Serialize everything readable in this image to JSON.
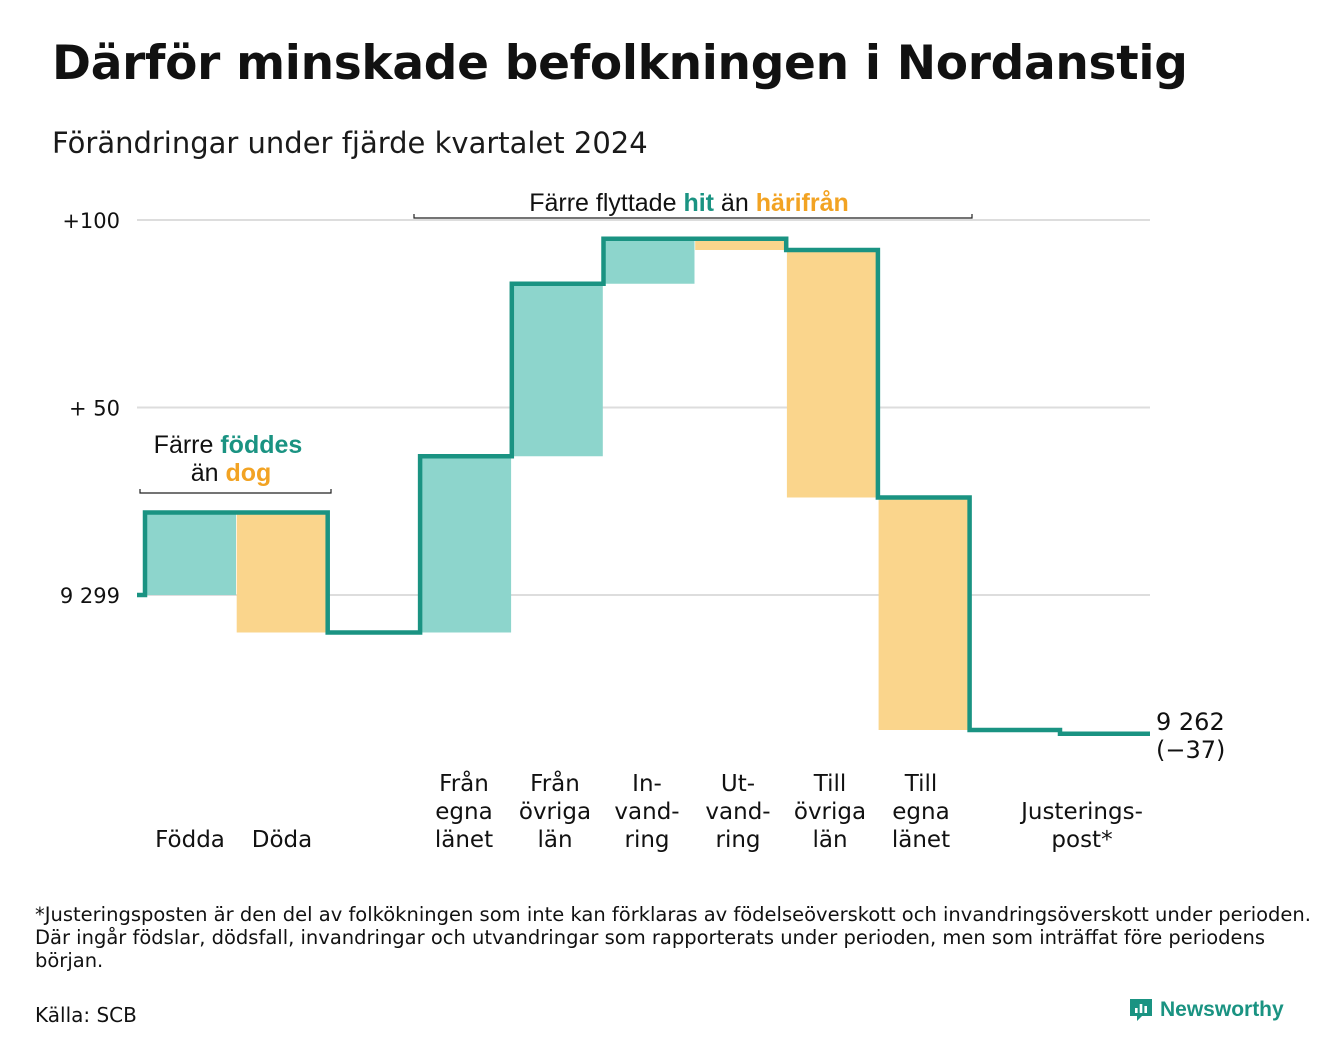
{
  "header": {
    "title": "Därför minskade befolkningen i Nordanstig",
    "subtitle": "Förändringar under fjärde kvartalet 2024"
  },
  "chart_data": {
    "type": "waterfall",
    "start_value": 9299,
    "start_label": "9 299",
    "end_value": 9262,
    "end_label": "9 262",
    "end_change_label": "(−37)",
    "y_axis": {
      "range": [
        -37,
        100
      ],
      "ticks": [
        {
          "value": 100,
          "label": "+100"
        },
        {
          "value": 50,
          "label": "+ 50"
        },
        {
          "value": 0,
          "label": "9 299"
        }
      ],
      "grid": true
    },
    "steps": [
      {
        "key": "fodda",
        "lines": [
          "Födda"
        ],
        "change": 22,
        "kind": "plus"
      },
      {
        "key": "doda",
        "lines": [
          "Döda"
        ],
        "change": -32,
        "kind": "minus"
      },
      {
        "key": "fran-egna-lanet",
        "lines": [
          "Från",
          "egna",
          "länet"
        ],
        "change": 47,
        "kind": "plus"
      },
      {
        "key": "fran-ovriga-lan",
        "lines": [
          "Från",
          "övriga",
          "län"
        ],
        "change": 46,
        "kind": "plus"
      },
      {
        "key": "invandring",
        "lines": [
          "In-",
          "vand-",
          "ring"
        ],
        "change": 12,
        "kind": "plus"
      },
      {
        "key": "utvandring",
        "lines": [
          "Ut-",
          "vand-",
          "ring"
        ],
        "change": -3,
        "kind": "minus"
      },
      {
        "key": "till-ovriga-lan",
        "lines": [
          "Till",
          "övriga",
          "län"
        ],
        "change": -66,
        "kind": "minus"
      },
      {
        "key": "till-egna-lanet",
        "lines": [
          "Till",
          "egna",
          "länet"
        ],
        "change": -62,
        "kind": "minus"
      },
      {
        "key": "justeringspost",
        "lines": [
          "Justerings-",
          "post*"
        ],
        "change": -1,
        "kind": "adjust"
      }
    ],
    "annotations": [
      {
        "key": "births",
        "parts": [
          {
            "text": "Färre ",
            "style": "plain"
          },
          {
            "text": "föddes",
            "style": "plus"
          }
        ],
        "parts2": [
          {
            "text": "än ",
            "style": "plain"
          },
          {
            "text": "dog",
            "style": "minus"
          }
        ],
        "spans_steps": [
          "fodda",
          "doda"
        ]
      },
      {
        "key": "migration",
        "parts": [
          {
            "text": "Färre flyttade ",
            "style": "plain"
          },
          {
            "text": "hit",
            "style": "plus"
          },
          {
            "text": " än ",
            "style": "plain"
          },
          {
            "text": "härifrån",
            "style": "minus"
          }
        ],
        "spans_steps": [
          "fran-egna-lanet",
          "till-egna-lanet"
        ]
      }
    ],
    "colors": {
      "plus_fill": "#8dd5cc",
      "minus_fill": "#fad58c",
      "line": "#1a9382",
      "plus_text": "#1a9382",
      "minus_text": "#f2a323",
      "grid": "#dddddd"
    }
  },
  "footer": {
    "footnote": "*Justeringsposten är den del av folkökningen som inte kan förklaras av födelseöverskott och invandringsöverskott under perioden. Där ingår födslar, dödsfall, invandringar och utvandringar som rapporterats under perioden, men som inträffat före periodens början.",
    "source": "Källa: SCB",
    "brand": "Newsworthy",
    "brand_icon": "newsworthy-logo-icon"
  }
}
